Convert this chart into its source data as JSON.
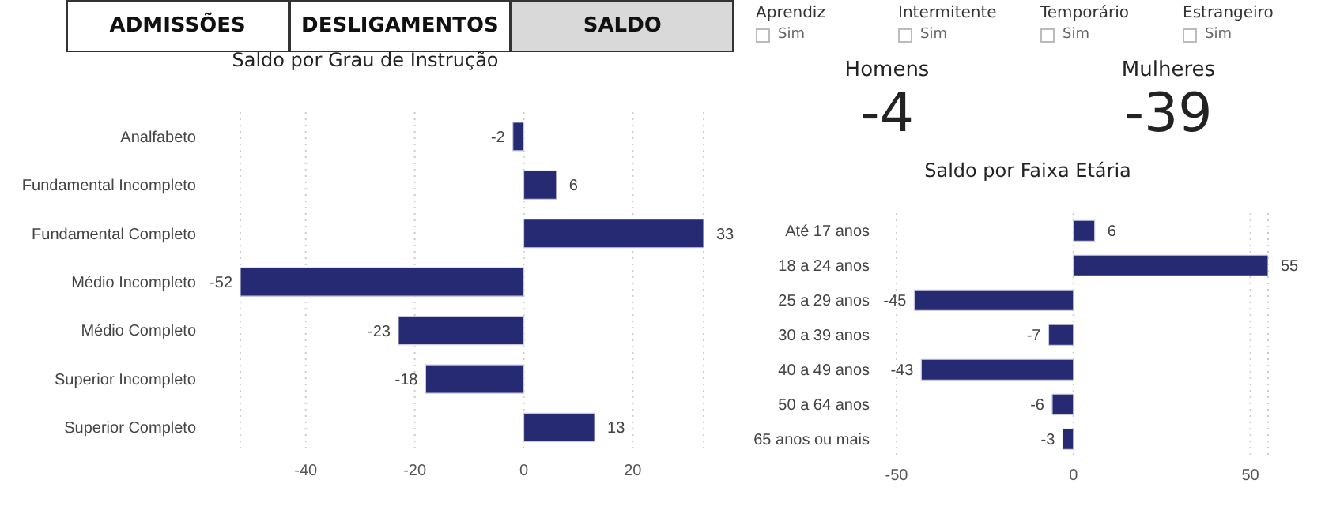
{
  "chart_data": [
    {
      "type": "other",
      "categories": [
        "ADMISSÕES",
        "DESLIGAMENTOS",
        "SALDO"
      ],
      "colors": [
        "#ffffff",
        "#ffffff",
        "#d9d9d9"
      ]
    },
    {
      "type": "other",
      "categories": [
        "Aprendiz",
        "Intermitente",
        "Temporário",
        "Estrangeiro"
      ],
      "annotations": [
        "Sim",
        "Sim",
        "Sim",
        "Sim"
      ]
    },
    {
      "type": "bar",
      "orientation": "horizontal",
      "title": "Saldo por Grau de Instrução",
      "categories": [
        "Analfabeto",
        "Fundamental Incompleto",
        "Fundamental Completo",
        "Médio Incompleto",
        "Médio Completo",
        "Superior Incompleto",
        "Superior Completo"
      ],
      "values": [
        -2,
        6,
        33,
        -52,
        -23,
        -18,
        13
      ],
      "color": "#262a72",
      "xlim": [
        -52,
        33
      ],
      "xticks": [
        -40,
        -20,
        0,
        20
      ],
      "grid": "x",
      "data_labels": true
    },
    {
      "type": "other",
      "categories": [
        "Homens",
        "Mulheres"
      ],
      "annotations": [
        "-4",
        "-39"
      ]
    },
    {
      "type": "bar",
      "orientation": "horizontal",
      "title": "Saldo por Faixa Etária",
      "categories": [
        "Até 17 anos",
        "18 a 24 anos",
        "25 a 29 anos",
        "30 a 39 anos",
        "40 a 49 anos",
        "50 a 64 anos",
        "65 anos ou mais"
      ],
      "values": [
        6,
        55,
        -45,
        -7,
        -43,
        -6,
        -3
      ],
      "color": "#262a72",
      "xlim": [
        -50,
        55
      ],
      "xticks": [
        -50,
        0,
        50
      ],
      "grid": "x",
      "data_labels": true
    }
  ]
}
